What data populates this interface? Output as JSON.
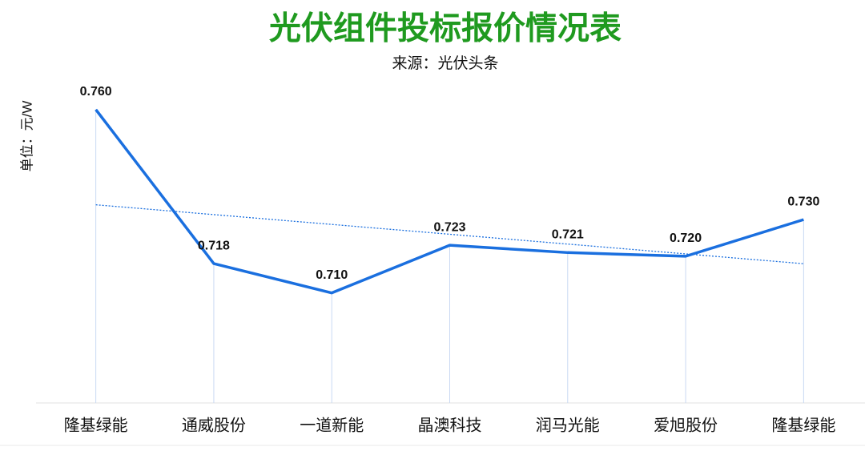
{
  "chart_data": {
    "type": "line",
    "title": "光伏组件投标报价情况表",
    "subtitle": "来源：光伏头条",
    "y_label": "单位：元/W",
    "categories": [
      "隆基绿能",
      "通威股份",
      "一道新能",
      "晶澳科技",
      "润马光能",
      "爱旭股份",
      "隆基绿能"
    ],
    "values": [
      0.76,
      0.718,
      0.71,
      0.723,
      0.721,
      0.72,
      0.73
    ],
    "value_labels": [
      "0.760",
      "0.718",
      "0.710",
      "0.723",
      "0.721",
      "0.720",
      "0.730"
    ],
    "color": "#1a6fdf",
    "title_color": "#1f9a1f",
    "ylim": [
      0.68,
      0.77
    ],
    "trendline": "linear",
    "drop_lines": true
  }
}
